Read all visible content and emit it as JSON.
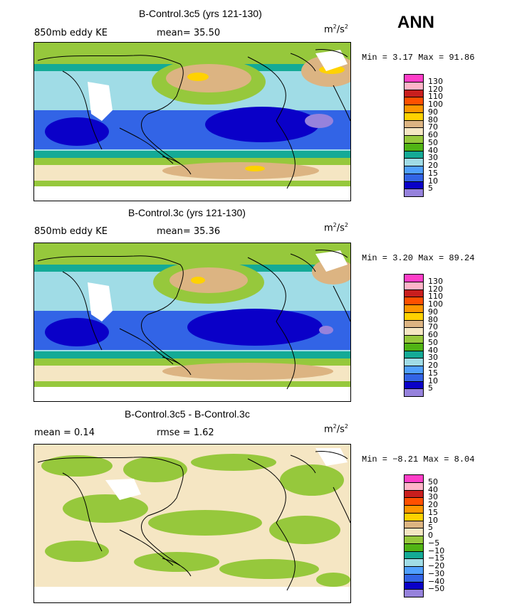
{
  "season": "ANN",
  "units_base": "m",
  "units_sup": "2",
  "units_mid": "/s",
  "units_sup2": "2",
  "panels": [
    {
      "title": "B-Control.3c5 (yrs 121-130)",
      "left_label": "850mb eddy KE",
      "mid_label": "mean=  35.50",
      "minmax": "Min =   3.17 Max =  91.86",
      "colors": [
        "#ff3ec8",
        "#ffb4c8",
        "#c81e1e",
        "#ff5000",
        "#ff9600",
        "#ffd200",
        "#dcb482",
        "#f5e6c3",
        "#96c83c",
        "#50b414",
        "#14aa96",
        "#a0dce6",
        "#50a0ff",
        "#3264e6",
        "#0a00c8",
        "#9682dc"
      ],
      "labels": [
        "130",
        "120",
        "110",
        "100",
        "90",
        "80",
        "70",
        "60",
        "50",
        "40",
        "30",
        "20",
        "15",
        "10",
        "5"
      ]
    },
    {
      "title": "B-Control.3c (yrs 121-130)",
      "left_label": "850mb eddy KE",
      "mid_label": "mean=  35.36",
      "minmax": "Min =   3.20 Max =  89.24",
      "colors": [
        "#ff3ec8",
        "#ffb4c8",
        "#c81e1e",
        "#ff5000",
        "#ff9600",
        "#ffd200",
        "#dcb482",
        "#f5e6c3",
        "#96c83c",
        "#50b414",
        "#14aa96",
        "#a0dce6",
        "#50a0ff",
        "#3264e6",
        "#0a00c8",
        "#9682dc"
      ],
      "labels": [
        "130",
        "120",
        "110",
        "100",
        "90",
        "80",
        "70",
        "60",
        "50",
        "40",
        "30",
        "20",
        "15",
        "10",
        "5"
      ]
    },
    {
      "title": "B-Control.3c5 - B-Control.3c",
      "left_label": "mean =   0.14",
      "mid_label": "rmse =   1.62",
      "minmax": "Min =  −8.21 Max =   8.04",
      "colors": [
        "#ff3ec8",
        "#ffb4c8",
        "#c81e1e",
        "#ff5000",
        "#ff9600",
        "#ffd200",
        "#dcb482",
        "#f5e6c3",
        "#96c83c",
        "#50b414",
        "#14aa96",
        "#a0dce6",
        "#50a0ff",
        "#3264e6",
        "#0a00c8",
        "#9682dc"
      ],
      "labels": [
        "50",
        "40",
        "30",
        "20",
        "15",
        "10",
        "5",
        "0",
        "−5",
        "−10",
        "−15",
        "−20",
        "−30",
        "−40",
        "−50"
      ]
    }
  ]
}
